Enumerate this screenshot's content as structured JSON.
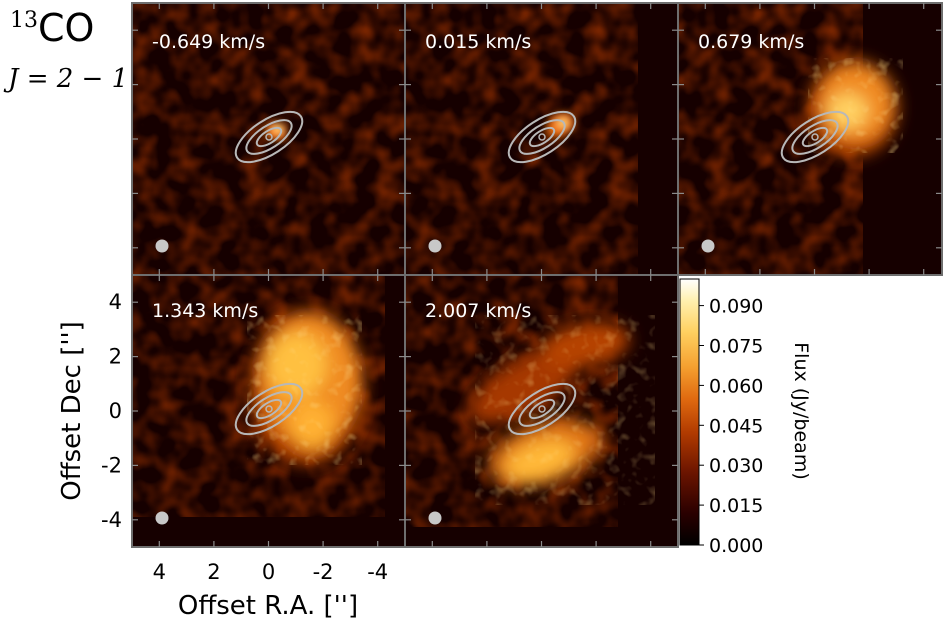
{
  "header": {
    "isotope": "13",
    "molecule": "CO",
    "transition": "J = 2 − 1"
  },
  "chart_data": {
    "type": "heatmap",
    "panel_labels": [
      "-0.649 km/s",
      "0.015 km/s",
      "0.679 km/s",
      "1.343 km/s",
      "2.007 km/s"
    ],
    "velocities_km_s": [
      -0.649,
      0.015,
      0.679,
      1.343,
      2.007
    ],
    "xlabel": "Offset R.A. ['']",
    "ylabel": "Offset Dec ['']",
    "xlim": [
      5,
      -5
    ],
    "ylim": [
      -5,
      5
    ],
    "x_ticks": [
      4,
      2,
      0,
      -2,
      -4
    ],
    "y_ticks": [
      4,
      2,
      0,
      -2,
      -4
    ],
    "x_tick_labels": [
      "4",
      "2",
      "0",
      "-2",
      "-4"
    ],
    "y_tick_labels": [
      "4",
      "2",
      "0",
      "-2",
      "-4"
    ],
    "colorbar": {
      "label": "Flux (Jy/beam)",
      "range": [
        0.0,
        0.1
      ],
      "ticks": [
        0.0,
        0.015,
        0.03,
        0.045,
        0.06,
        0.075,
        0.09
      ],
      "tick_labels": [
        "0.000",
        "0.015",
        "0.030",
        "0.045",
        "0.060",
        "0.075",
        "0.090"
      ],
      "colormap": [
        "#000000",
        "#2a0000",
        "#6a1400",
        "#b03a00",
        "#e06a10",
        "#f5a030",
        "#ffd060",
        "#fff0b0",
        "#ffffff"
      ]
    },
    "overlay_color": "#b8b8b8",
    "beam_color": "#c8c8c8",
    "frame_color": "#6e6e6e"
  }
}
